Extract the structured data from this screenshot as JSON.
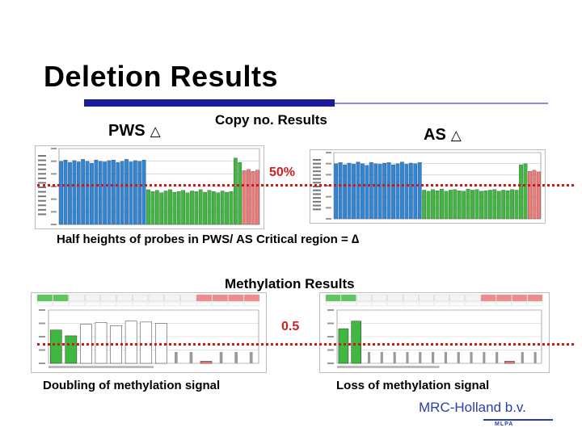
{
  "slide": {
    "title": "Deletion Results",
    "copy_heading": "Copy no. Results",
    "pws_label": "PWS",
    "as_label": "AS",
    "triangle_glyph": "△",
    "fifty_percent": "50%",
    "half_heights_text": "Half heights of probes in PWS/ AS Critical region = ∆",
    "methylation_heading": "Methylation Results",
    "point_five": "0.5",
    "doubling_caption": "Doubling of methylation signal",
    "loss_caption": "Loss of methylation signal",
    "logo_text": "MRC-Holland b.v.",
    "logo_sub": "MLPA"
  },
  "colors": {
    "title_rule": "#1c1c9a",
    "accent_red": "#d02020",
    "bar_blue": "#2f86d8",
    "bar_green": "#3fb83f",
    "bar_red": "#f27a7a",
    "logo_blue": "#2a3ea8"
  },
  "chart_data": [
    {
      "type": "bar",
      "name_ref": "pws-copy-number",
      "ylim": [
        0,
        1.2
      ],
      "reference_line": 0.5,
      "series": [
        {
          "color": "blue",
          "values": [
            1.0,
            1.02,
            0.98,
            1.01,
            0.99,
            1.03,
            1.0,
            0.97,
            1.02,
            1.0,
            0.99,
            1.01,
            1.02,
            0.98,
            1.0,
            1.03,
            0.99,
            1.01,
            1.0,
            1.02
          ]
        },
        {
          "color": "green",
          "values": [
            0.55,
            0.52,
            0.54,
            0.5,
            0.53,
            0.55,
            0.51,
            0.52,
            0.54,
            0.5,
            0.53,
            0.52,
            0.55,
            0.51,
            0.54,
            0.52,
            0.5,
            0.53,
            0.51,
            0.52
          ]
        },
        {
          "color": "green",
          "values": [
            1.05,
            0.98
          ]
        },
        {
          "color": "red",
          "values": [
            0.85,
            0.87,
            0.84,
            0.86
          ]
        }
      ]
    },
    {
      "type": "bar",
      "name_ref": "as-copy-number",
      "ylim": [
        0,
        1.2
      ],
      "reference_line": 0.5,
      "series": [
        {
          "color": "blue",
          "values": [
            1.0,
            1.02,
            0.98,
            1.01,
            0.99,
            1.03,
            1.0,
            0.97,
            1.02,
            1.0,
            0.99,
            1.01,
            1.02,
            0.98,
            1.0,
            1.03,
            0.99,
            1.01,
            1.0,
            1.02
          ]
        },
        {
          "color": "green",
          "values": [
            0.52,
            0.5,
            0.53,
            0.51,
            0.54,
            0.5,
            0.52,
            0.53,
            0.51,
            0.5,
            0.54,
            0.52,
            0.53,
            0.5,
            0.51,
            0.52,
            0.53,
            0.5,
            0.52,
            0.51,
            0.53,
            0.52
          ]
        },
        {
          "color": "green",
          "values": [
            0.98,
            1.0
          ]
        },
        {
          "color": "red",
          "values": [
            0.86,
            0.88,
            0.85
          ]
        }
      ]
    },
    {
      "type": "bar",
      "name_ref": "pws-methylation",
      "ylim": [
        0,
        1.2
      ],
      "reference_line": 0.5,
      "bars": [
        {
          "value": 0.75,
          "kind": "green"
        },
        {
          "value": 0.62,
          "kind": "green"
        },
        {
          "value": 0.88,
          "kind": "white"
        },
        {
          "value": 0.92,
          "kind": "white"
        },
        {
          "value": 0.85,
          "kind": "white"
        },
        {
          "value": 0.95,
          "kind": "white"
        },
        {
          "value": 0.93,
          "kind": "white"
        },
        {
          "value": 0.9,
          "kind": "white"
        },
        {
          "value": 0.0,
          "kind": "gray"
        },
        {
          "value": 0.0,
          "kind": "gray"
        },
        {
          "value": 0.05,
          "kind": "red"
        },
        {
          "value": 0.0,
          "kind": "gray"
        },
        {
          "value": 0.0,
          "kind": "gray"
        },
        {
          "value": 0.0,
          "kind": "gray"
        }
      ]
    },
    {
      "type": "bar",
      "name_ref": "as-methylation",
      "ylim": [
        0,
        1.2
      ],
      "reference_line": 0.5,
      "bars": [
        {
          "value": 0.78,
          "kind": "green"
        },
        {
          "value": 0.95,
          "kind": "green"
        },
        {
          "value": 0.0,
          "kind": "gray"
        },
        {
          "value": 0.0,
          "kind": "gray"
        },
        {
          "value": 0.0,
          "kind": "gray"
        },
        {
          "value": 0.0,
          "kind": "gray"
        },
        {
          "value": 0.0,
          "kind": "gray"
        },
        {
          "value": 0.0,
          "kind": "gray"
        },
        {
          "value": 0.0,
          "kind": "gray"
        },
        {
          "value": 0.0,
          "kind": "gray"
        },
        {
          "value": 0.0,
          "kind": "gray"
        },
        {
          "value": 0.0,
          "kind": "gray"
        },
        {
          "value": 0.0,
          "kind": "gray"
        },
        {
          "value": 0.05,
          "kind": "red"
        },
        {
          "value": 0.0,
          "kind": "gray"
        },
        {
          "value": 0.0,
          "kind": "gray"
        }
      ]
    }
  ]
}
